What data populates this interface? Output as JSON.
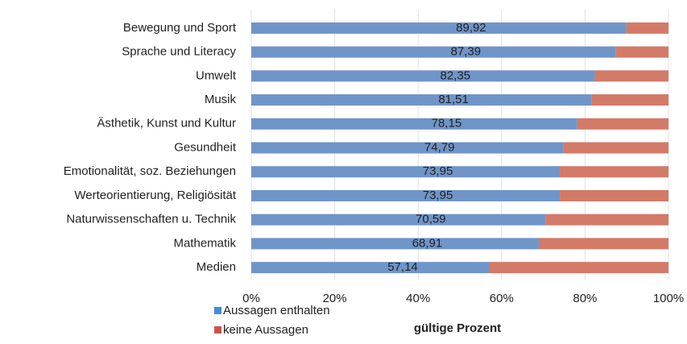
{
  "chart_data": {
    "type": "stacked-bar-horizontal",
    "categories": [
      "Bewegung und Sport",
      "Sprache und Literacy",
      "Umwelt",
      "Musik",
      "Ästhetik, Kunst und Kultur",
      "Gesundheit",
      "Emotionalität, soz. Beziehungen",
      "Werteorientierung, Religiösität",
      "Naturwissenschaften u. Technik",
      "Mathematik",
      "Medien"
    ],
    "series": [
      {
        "name": "Aussagen enthalten",
        "color": "#6f95c9",
        "legend_color": "#3d8fd8",
        "values": [
          89.92,
          87.39,
          82.35,
          81.51,
          78.15,
          74.79,
          73.95,
          73.95,
          70.59,
          68.91,
          57.14
        ],
        "value_labels": [
          "89,92",
          "87,39",
          "82,35",
          "81,51",
          "78,15",
          "74,79",
          "73,95",
          "73,95",
          "70,59",
          "68,91",
          "57,14"
        ]
      },
      {
        "name": "keine Aussagen",
        "color": "#d37a68",
        "legend_color": "#c9554a",
        "values": [
          10.08,
          12.61,
          17.65,
          18.49,
          21.85,
          25.21,
          26.05,
          26.05,
          29.41,
          31.09,
          42.86
        ]
      }
    ],
    "xlabel": "gültige Prozent",
    "xlim": [
      0,
      100
    ],
    "xticks": [
      {
        "value": 0,
        "label": "0%"
      },
      {
        "value": 20,
        "label": "20%"
      },
      {
        "value": 40,
        "label": "40%"
      },
      {
        "value": 60,
        "label": "60%"
      },
      {
        "value": 80,
        "label": "80%"
      },
      {
        "value": 100,
        "label": "100%"
      }
    ],
    "grid": true,
    "legend": "bottom-left"
  }
}
